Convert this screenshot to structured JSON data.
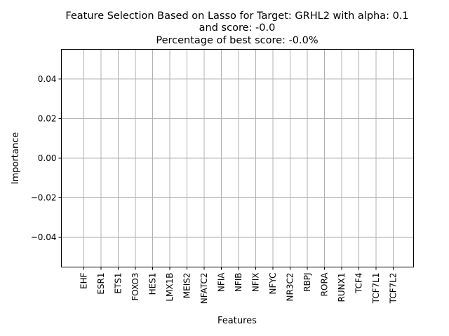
{
  "chart_data": {
    "type": "bar",
    "title_lines": [
      "Feature Selection Based on Lasso for Target: GRHL2 with alpha: 0.1",
      "and score: -0.0",
      "Percentage of best score: -0.0%"
    ],
    "xlabel": "Features",
    "ylabel": "Importance",
    "categories": [
      "EHF",
      "ESR1",
      "ETS1",
      "FOXO3",
      "HES1",
      "LMX1B",
      "MEIS2",
      "NFATC2",
      "NFIA",
      "NFIB",
      "NFIX",
      "NFYC",
      "NR3C2",
      "RBPJ",
      "RORA",
      "RUNX1",
      "TCF4",
      "TCF7L1",
      "TCF7L2"
    ],
    "values": [
      0,
      0,
      0,
      0,
      0,
      0,
      0,
      0,
      0,
      0,
      0,
      0,
      0,
      0,
      0,
      0,
      0,
      0,
      0
    ],
    "ylim": [
      -0.055,
      0.055
    ],
    "yticks": [
      -0.04,
      -0.02,
      0.0,
      0.02,
      0.04
    ],
    "ytick_labels": [
      "−0.04",
      "−0.02",
      "0.00",
      "0.02",
      "0.04"
    ],
    "grid": true,
    "grid_color": "#b0b0b0",
    "bar_color": "#1f77b4"
  }
}
